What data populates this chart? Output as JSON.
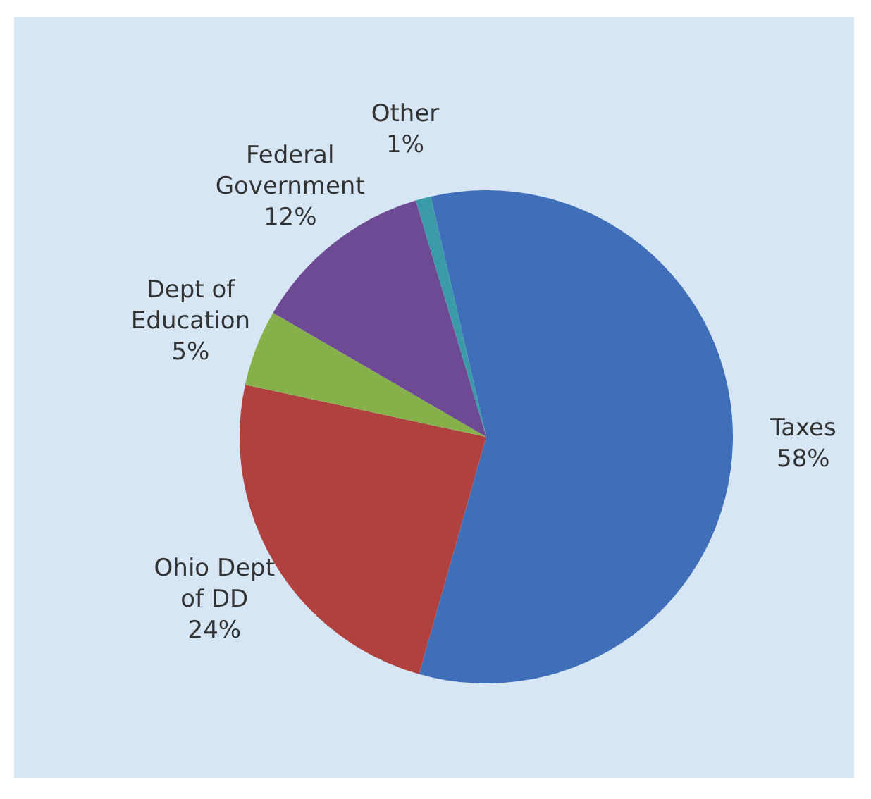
{
  "chart_data": {
    "type": "pie",
    "categories": [
      "Taxes",
      "Ohio Dept of DD",
      "Dept of Education",
      "Federal Government",
      "Other"
    ],
    "values": [
      58,
      24,
      5,
      12,
      1
    ],
    "colors": [
      "#3f6fb8",
      "#b0413e",
      "#86b049",
      "#6e4a94",
      "#3a9aa8"
    ],
    "value_labels": [
      "58%",
      "24%",
      "5%",
      "12%",
      "1%"
    ],
    "legend": false
  }
}
